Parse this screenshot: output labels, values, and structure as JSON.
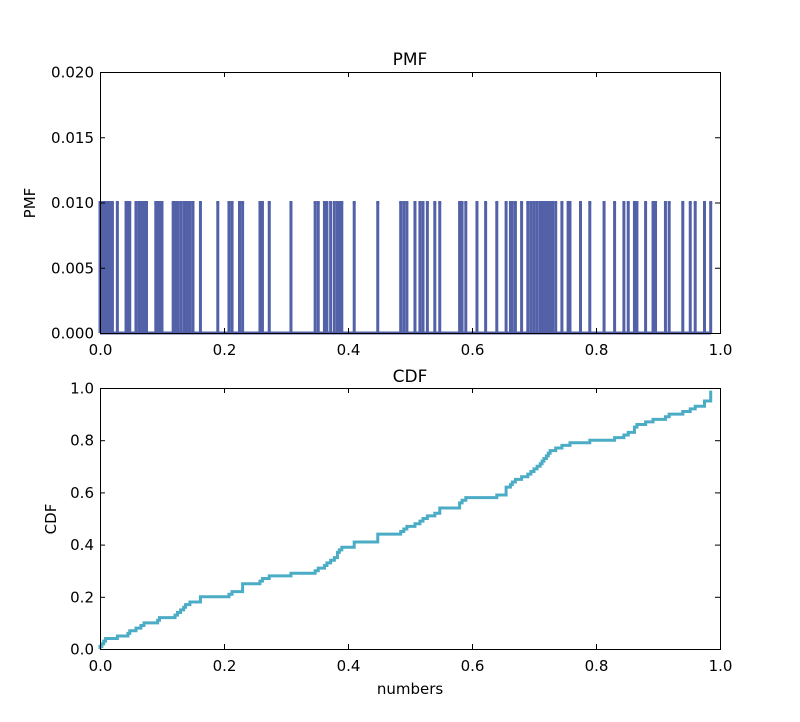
{
  "chart_data": [
    {
      "type": "line",
      "title": "PMF",
      "xlabel": "",
      "ylabel": "PMF",
      "xlim": [
        0.0,
        1.0
      ],
      "ylim": [
        0.0,
        0.02
      ],
      "xticks": [
        "0.0",
        "0.2",
        "0.4",
        "0.6",
        "0.8",
        "1.0"
      ],
      "yticks": [
        "0.000",
        "0.005",
        "0.010",
        "0.015",
        "0.020"
      ],
      "color": "#5361a8",
      "grid": false,
      "spike_height": 0.01,
      "x": [
        0.0,
        0.003,
        0.006,
        0.009,
        0.012,
        0.016,
        0.02,
        0.028,
        0.042,
        0.045,
        0.048,
        0.058,
        0.063,
        0.066,
        0.068,
        0.071,
        0.075,
        0.09,
        0.093,
        0.096,
        0.1,
        0.118,
        0.121,
        0.125,
        0.13,
        0.135,
        0.138,
        0.141,
        0.145,
        0.15,
        0.162,
        0.19,
        0.208,
        0.213,
        0.225,
        0.23,
        0.258,
        0.262,
        0.273,
        0.308,
        0.347,
        0.352,
        0.362,
        0.366,
        0.372,
        0.378,
        0.383,
        0.386,
        0.39,
        0.41,
        0.448,
        0.485,
        0.49,
        0.495,
        0.508,
        0.516,
        0.521,
        0.528,
        0.54,
        0.548,
        0.58,
        0.584,
        0.59,
        0.608,
        0.622,
        0.64,
        0.655,
        0.662,
        0.665,
        0.67,
        0.68,
        0.69,
        0.695,
        0.7,
        0.705,
        0.71,
        0.713,
        0.716,
        0.72,
        0.723,
        0.726,
        0.73,
        0.735,
        0.745,
        0.755,
        0.758,
        0.775,
        0.79,
        0.813,
        0.83,
        0.845,
        0.852,
        0.862,
        0.866,
        0.88,
        0.892,
        0.896,
        0.912,
        0.918,
        0.94,
        0.952,
        0.96,
        0.975,
        0.985
      ]
    },
    {
      "type": "line",
      "title": "CDF",
      "xlabel": "numbers",
      "ylabel": "CDF",
      "xlim": [
        0.0,
        1.0
      ],
      "ylim": [
        0.0,
        1.0
      ],
      "xticks": [
        "0.0",
        "0.2",
        "0.4",
        "0.6",
        "0.8",
        "1.0"
      ],
      "yticks": [
        "0.0",
        "0.2",
        "0.4",
        "0.6",
        "0.8",
        "1.0"
      ],
      "color": "#4bacc6",
      "grid": false,
      "step": true,
      "x": [
        0.0,
        0.003,
        0.006,
        0.009,
        0.012,
        0.016,
        0.02,
        0.028,
        0.042,
        0.045,
        0.048,
        0.058,
        0.063,
        0.066,
        0.068,
        0.071,
        0.075,
        0.09,
        0.093,
        0.096,
        0.1,
        0.118,
        0.121,
        0.125,
        0.13,
        0.135,
        0.138,
        0.141,
        0.145,
        0.15,
        0.162,
        0.19,
        0.208,
        0.213,
        0.225,
        0.23,
        0.258,
        0.262,
        0.273,
        0.308,
        0.347,
        0.352,
        0.362,
        0.366,
        0.372,
        0.378,
        0.383,
        0.386,
        0.39,
        0.41,
        0.448,
        0.485,
        0.49,
        0.495,
        0.508,
        0.516,
        0.521,
        0.528,
        0.54,
        0.548,
        0.58,
        0.584,
        0.59,
        0.608,
        0.622,
        0.64,
        0.655,
        0.662,
        0.665,
        0.67,
        0.68,
        0.69,
        0.695,
        0.7,
        0.705,
        0.71,
        0.713,
        0.716,
        0.72,
        0.723,
        0.726,
        0.73,
        0.735,
        0.745,
        0.755,
        0.758,
        0.775,
        0.79,
        0.813,
        0.83,
        0.845,
        0.852,
        0.862,
        0.866,
        0.88,
        0.892,
        0.896,
        0.912,
        0.918,
        0.94,
        0.952,
        0.96,
        0.975,
        0.985
      ],
      "y": [
        0.01,
        0.02,
        0.03,
        0.04,
        0.04,
        0.04,
        0.04,
        0.05,
        0.05,
        0.06,
        0.07,
        0.08,
        0.08,
        0.09,
        0.09,
        0.1,
        0.1,
        0.1,
        0.11,
        0.12,
        0.12,
        0.12,
        0.13,
        0.14,
        0.15,
        0.16,
        0.17,
        0.17,
        0.18,
        0.18,
        0.2,
        0.2,
        0.21,
        0.22,
        0.22,
        0.25,
        0.26,
        0.27,
        0.28,
        0.29,
        0.3,
        0.31,
        0.32,
        0.33,
        0.34,
        0.35,
        0.37,
        0.38,
        0.39,
        0.41,
        0.44,
        0.45,
        0.46,
        0.47,
        0.48,
        0.49,
        0.5,
        0.51,
        0.52,
        0.54,
        0.56,
        0.57,
        0.58,
        0.58,
        0.58,
        0.59,
        0.62,
        0.63,
        0.64,
        0.65,
        0.66,
        0.67,
        0.68,
        0.69,
        0.7,
        0.71,
        0.72,
        0.73,
        0.74,
        0.75,
        0.76,
        0.76,
        0.77,
        0.78,
        0.78,
        0.79,
        0.79,
        0.8,
        0.8,
        0.81,
        0.82,
        0.83,
        0.85,
        0.86,
        0.87,
        0.88,
        0.88,
        0.89,
        0.9,
        0.91,
        0.92,
        0.93,
        0.95,
        0.99
      ]
    }
  ]
}
